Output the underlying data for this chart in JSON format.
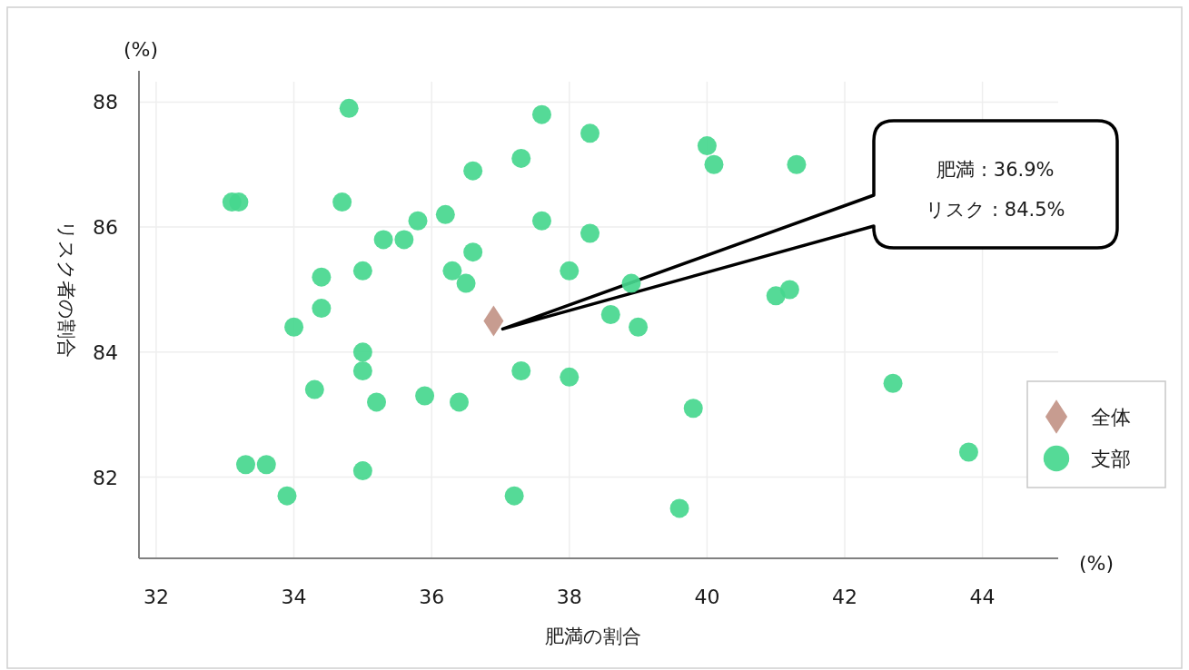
{
  "chart_data": {
    "type": "scatter",
    "xlabel": "肥満の割合",
    "ylabel": "リスク者の割合",
    "xlim": [
      31.75,
      45.1
    ],
    "ylim": [
      80.7,
      88.5
    ],
    "xticks": [
      32,
      34,
      36,
      38,
      40,
      42,
      44
    ],
    "yticks": [
      82,
      84,
      86,
      88
    ],
    "grid": true,
    "legend": "right",
    "series": [
      {
        "name": "全体",
        "color": "#c4978a",
        "marker": "diamond",
        "x": [
          36.9
        ],
        "values": [
          84.5
        ]
      },
      {
        "name": "支部",
        "color": "#47d78e",
        "marker": "circle",
        "x": [
          33.1,
          33.2,
          34.8,
          37.6,
          38.3,
          37.3,
          36.6,
          40.0,
          40.1,
          41.3,
          34.7,
          35.8,
          36.2,
          37.6,
          38.3,
          35.3,
          35.6,
          36.6,
          34.4,
          35.0,
          36.3,
          36.5,
          38.0,
          38.9,
          34.4,
          34.0,
          38.6,
          39.0,
          41.0,
          41.2,
          35.0,
          35.0,
          37.3,
          38.0,
          34.3,
          35.2,
          35.9,
          36.4,
          39.8,
          42.7,
          43.8,
          33.3,
          33.6,
          35.0,
          33.9,
          37.2,
          39.6
        ],
        "values": [
          86.4,
          86.4,
          87.9,
          87.8,
          87.5,
          87.1,
          86.9,
          87.3,
          87.0,
          87.0,
          86.4,
          86.1,
          86.2,
          86.1,
          85.9,
          85.8,
          85.8,
          85.6,
          85.2,
          85.3,
          85.3,
          85.1,
          85.3,
          85.1,
          84.7,
          84.4,
          84.6,
          84.4,
          84.9,
          85.0,
          84.0,
          83.7,
          83.7,
          83.6,
          83.4,
          83.2,
          83.3,
          83.2,
          83.1,
          83.5,
          82.4,
          82.2,
          82.2,
          82.1,
          81.7,
          81.7,
          81.5
        ]
      }
    ],
    "annotations": [
      "肥満 : 36.9%",
      "リスク : 84.5%",
      "(%)",
      "(%)"
    ]
  }
}
